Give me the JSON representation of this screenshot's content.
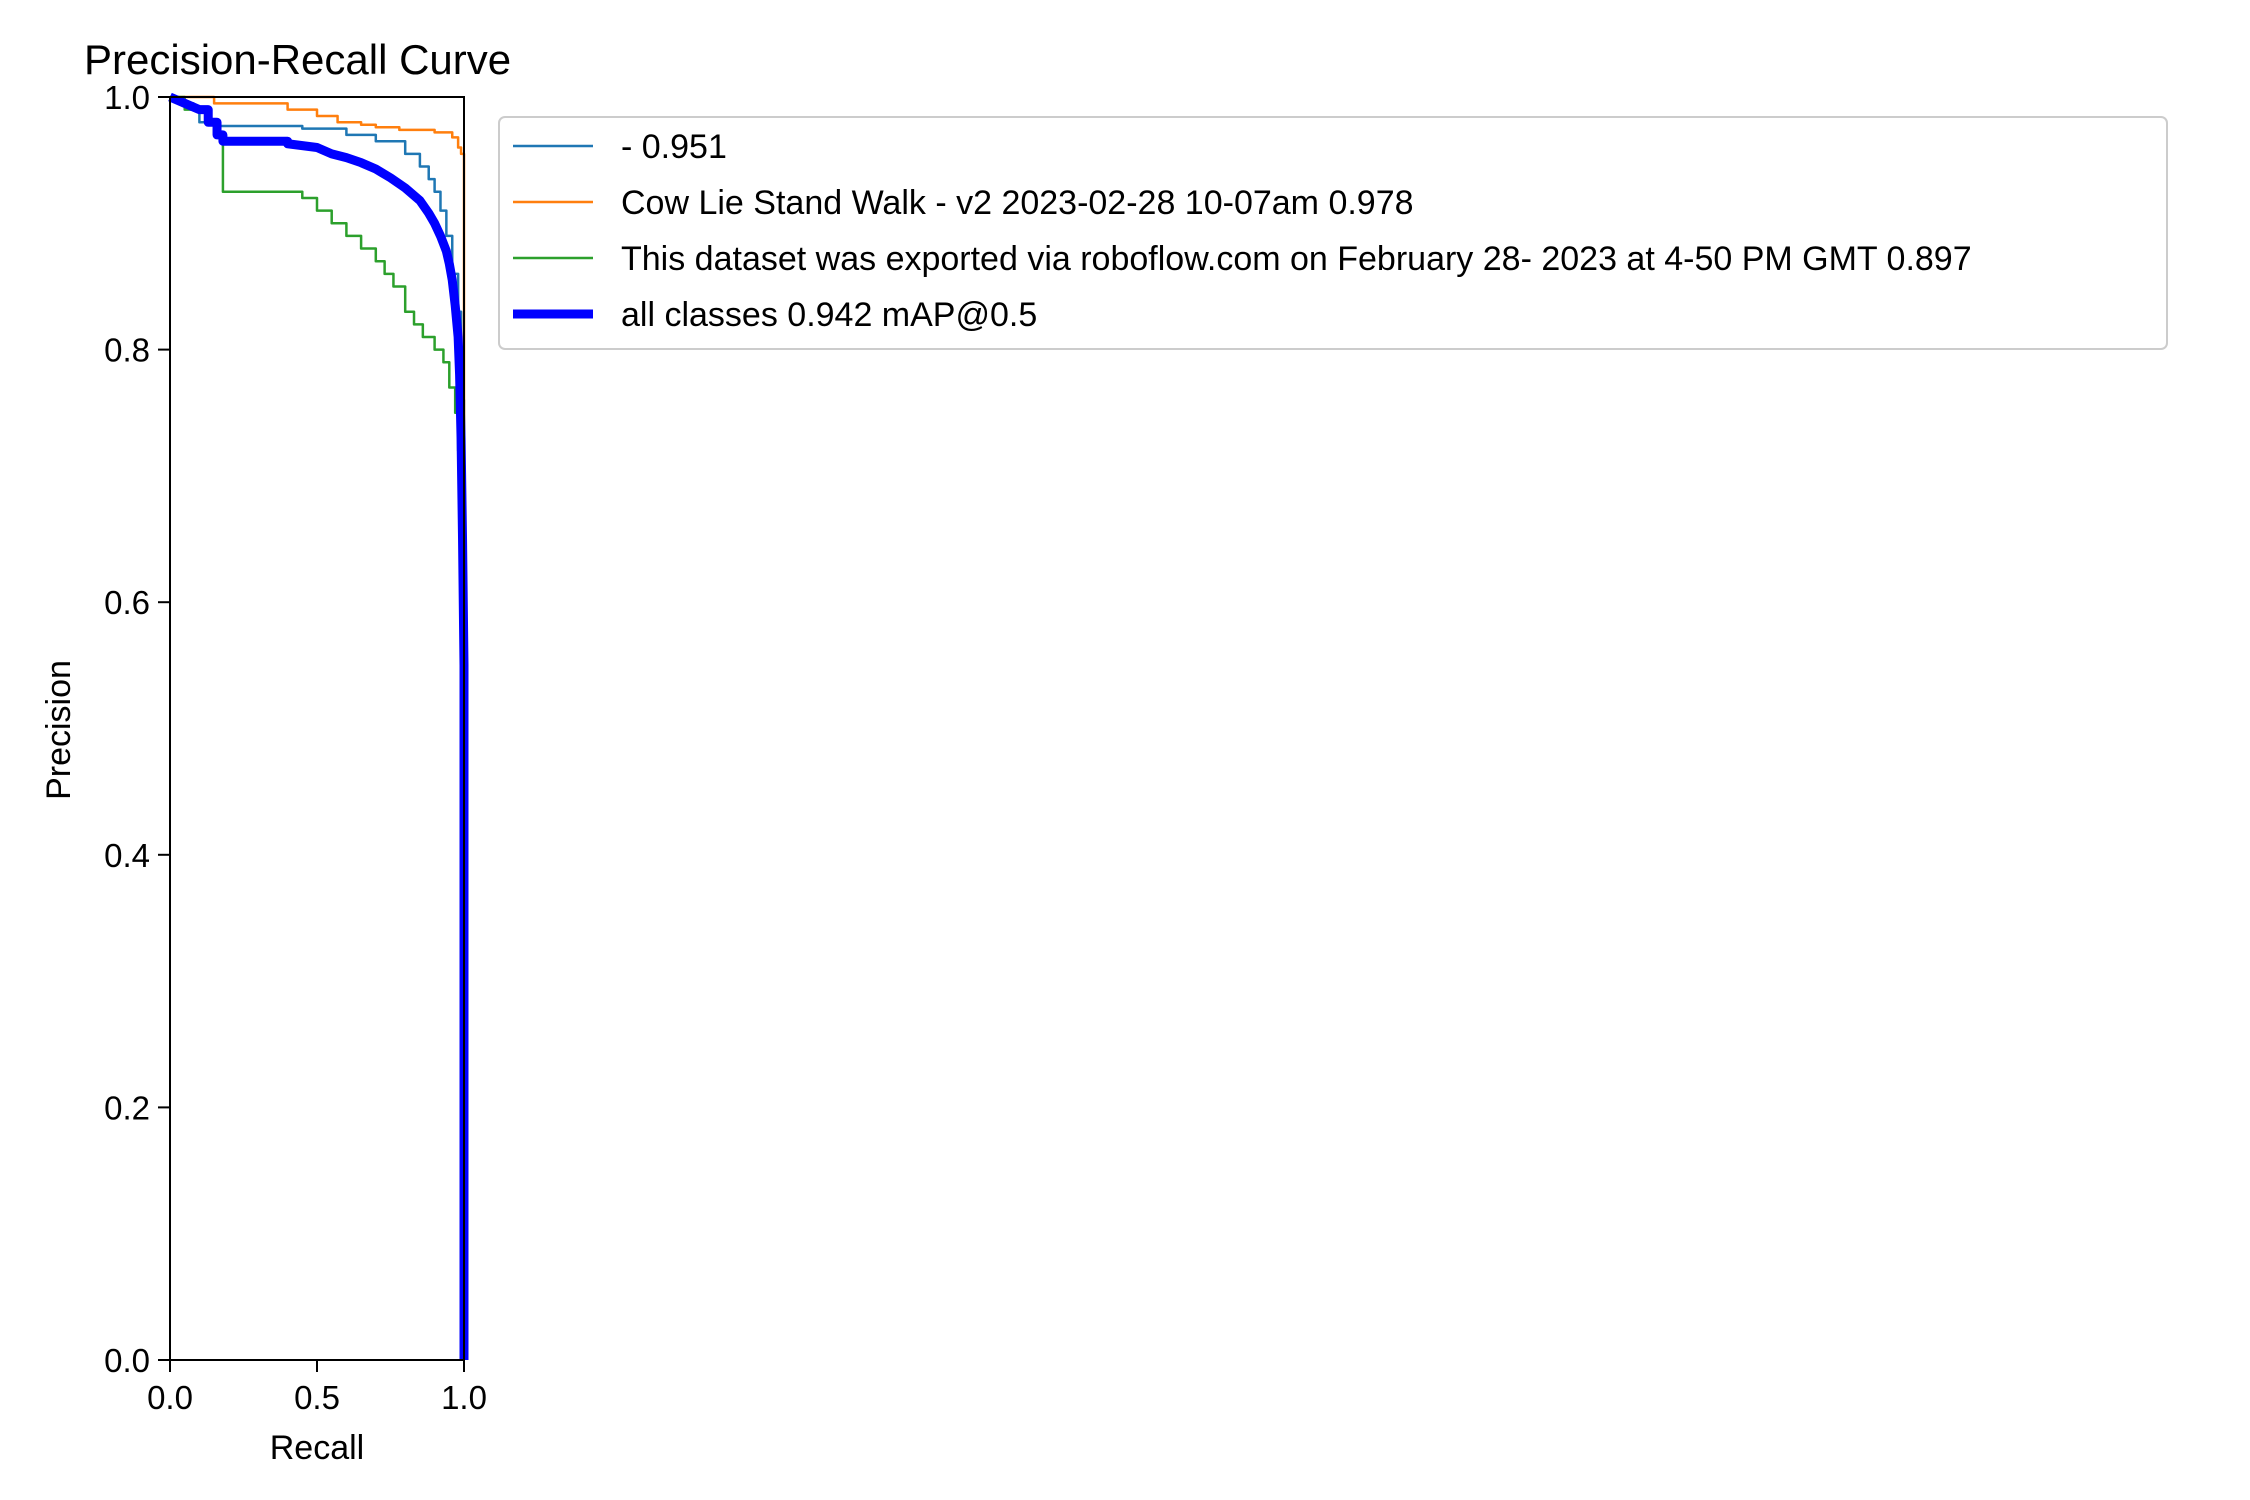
{
  "chart_data": {
    "type": "line",
    "title": "Precision-Recall Curve",
    "xlabel": "Recall",
    "ylabel": "Precision",
    "xlim": [
      0.0,
      1.0
    ],
    "ylim": [
      0.0,
      1.0
    ],
    "xticks": [
      0.0,
      0.5,
      1.0
    ],
    "xtick_labels": [
      "0.0",
      "0.5",
      "1.0"
    ],
    "yticks": [
      0.0,
      0.2,
      0.4,
      0.6,
      0.8,
      1.0
    ],
    "ytick_labels": [
      "0.0",
      "0.2",
      "0.4",
      "0.6",
      "0.8",
      "1.0"
    ],
    "grid": false,
    "legend_position": "upper-left, outside plot to the right",
    "series": [
      {
        "name": "- 0.951",
        "color": "#1f77b4",
        "style": "thin",
        "x": [
          0.0,
          0.05,
          0.08,
          0.08,
          0.1,
          0.1,
          0.15,
          0.15,
          0.3,
          0.45,
          0.45,
          0.6,
          0.6,
          0.7,
          0.7,
          0.8,
          0.8,
          0.85,
          0.85,
          0.88,
          0.88,
          0.9,
          0.9,
          0.92,
          0.92,
          0.94,
          0.94,
          0.96,
          0.96,
          0.98,
          0.98,
          0.99,
          0.99,
          1.0,
          1.0
        ],
        "y": [
          1.0,
          0.995,
          0.995,
          0.99,
          0.99,
          0.98,
          0.98,
          0.977,
          0.977,
          0.977,
          0.975,
          0.975,
          0.97,
          0.97,
          0.965,
          0.965,
          0.955,
          0.955,
          0.945,
          0.945,
          0.935,
          0.935,
          0.925,
          0.925,
          0.91,
          0.91,
          0.89,
          0.89,
          0.86,
          0.86,
          0.83,
          0.83,
          0.76,
          0.76,
          0.0
        ]
      },
      {
        "name": "Cow Lie Stand Walk - v2 2023-02-28 10-07am 0.978",
        "color": "#ff7f0e",
        "style": "thin",
        "x": [
          0.0,
          0.15,
          0.15,
          0.4,
          0.4,
          0.5,
          0.5,
          0.57,
          0.57,
          0.65,
          0.65,
          0.7,
          0.7,
          0.78,
          0.78,
          0.9,
          0.9,
          0.96,
          0.96,
          0.98,
          0.98,
          0.99,
          0.99,
          1.0,
          1.0
        ],
        "y": [
          1.0,
          1.0,
          0.995,
          0.995,
          0.99,
          0.99,
          0.985,
          0.985,
          0.98,
          0.98,
          0.978,
          0.978,
          0.976,
          0.976,
          0.974,
          0.974,
          0.972,
          0.972,
          0.968,
          0.968,
          0.96,
          0.96,
          0.955,
          0.955,
          0.0
        ]
      },
      {
        "name": "This dataset was exported via roboflow.com on February 28- 2023 at 4-50 PM GMT 0.897",
        "color": "#2ca02c",
        "style": "thin",
        "x": [
          0.0,
          0.05,
          0.05,
          0.13,
          0.13,
          0.16,
          0.16,
          0.18,
          0.18,
          0.45,
          0.45,
          0.5,
          0.5,
          0.55,
          0.55,
          0.6,
          0.6,
          0.65,
          0.65,
          0.7,
          0.7,
          0.73,
          0.73,
          0.76,
          0.76,
          0.8,
          0.8,
          0.83,
          0.83,
          0.86,
          0.86,
          0.9,
          0.9,
          0.93,
          0.93,
          0.95,
          0.95,
          0.97,
          0.97,
          0.98,
          0.98,
          0.99,
          0.99,
          1.0,
          1.0
        ],
        "y": [
          1.0,
          1.0,
          0.99,
          0.99,
          0.98,
          0.98,
          0.97,
          0.97,
          0.925,
          0.925,
          0.92,
          0.92,
          0.91,
          0.91,
          0.9,
          0.9,
          0.89,
          0.89,
          0.88,
          0.88,
          0.87,
          0.87,
          0.86,
          0.86,
          0.85,
          0.85,
          0.83,
          0.83,
          0.82,
          0.82,
          0.81,
          0.81,
          0.8,
          0.8,
          0.79,
          0.79,
          0.77,
          0.77,
          0.75,
          0.75,
          0.72,
          0.72,
          0.55,
          0.55,
          0.0
        ]
      },
      {
        "name": "all classes 0.942 mAP@0.5",
        "color": "#0000ff",
        "style": "thick",
        "x": [
          0.0,
          0.05,
          0.1,
          0.13,
          0.13,
          0.16,
          0.16,
          0.18,
          0.18,
          0.4,
          0.4,
          0.5,
          0.55,
          0.6,
          0.65,
          0.7,
          0.75,
          0.8,
          0.85,
          0.88,
          0.9,
          0.92,
          0.94,
          0.95,
          0.96,
          0.97,
          0.98,
          0.985,
          0.99,
          0.995,
          1.0,
          1.0
        ],
        "y": [
          1.0,
          0.995,
          0.99,
          0.99,
          0.98,
          0.98,
          0.97,
          0.97,
          0.965,
          0.965,
          0.963,
          0.96,
          0.955,
          0.952,
          0.948,
          0.943,
          0.936,
          0.928,
          0.918,
          0.908,
          0.9,
          0.89,
          0.878,
          0.868,
          0.855,
          0.835,
          0.81,
          0.78,
          0.73,
          0.65,
          0.55,
          0.0
        ]
      }
    ]
  }
}
